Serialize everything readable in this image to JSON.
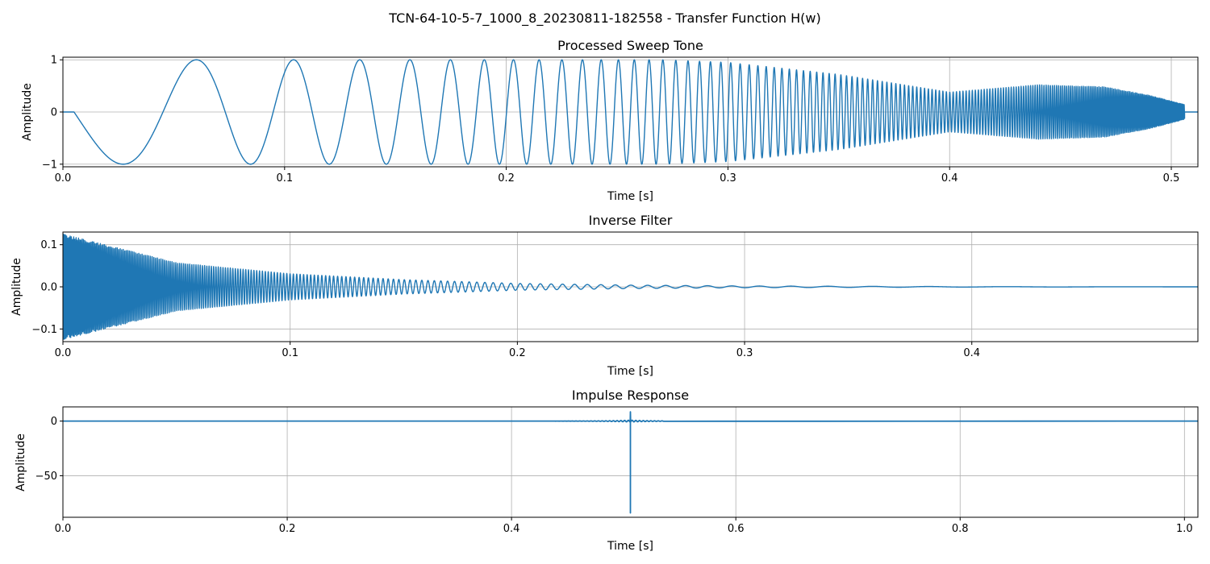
{
  "figure": {
    "title": "TCN-64-10-5-7_1000_8_20230811-182558 - Transfer Function H(w)"
  },
  "chart_data": [
    {
      "type": "line",
      "id": "sweep",
      "title": "Processed Sweep Tone",
      "xlabel": "Time [s]",
      "ylabel": "Amplitude",
      "xlim": [
        0.0,
        0.512
      ],
      "ylim": [
        -1.05,
        1.05
      ],
      "xticks": [
        0.0,
        0.1,
        0.2,
        0.3,
        0.4,
        0.5
      ],
      "xtick_labels": [
        "0.0",
        "0.1",
        "0.2",
        "0.3",
        "0.4",
        "0.5"
      ],
      "yticks": [
        1,
        0,
        -1
      ],
      "ytick_labels": [
        "1",
        "0",
        "−1"
      ],
      "grid": true,
      "color": "#1f77b4",
      "description_points": {
        "silence_end": 0.005,
        "sweep_start": 0.005,
        "sweep_end": 0.506,
        "envelope": [
          [
            0.0,
            0.0
          ],
          [
            0.005,
            1.0
          ],
          [
            0.27,
            1.0
          ],
          [
            0.3,
            0.95
          ],
          [
            0.35,
            0.72
          ],
          [
            0.4,
            0.38
          ],
          [
            0.44,
            0.52
          ],
          [
            0.47,
            0.48
          ],
          [
            0.49,
            0.32
          ],
          [
            0.506,
            0.14
          ],
          [
            0.512,
            0.0
          ]
        ]
      }
    },
    {
      "type": "line",
      "id": "inverse",
      "title": "Inverse Filter",
      "xlabel": "Time [s]",
      "ylabel": "Amplitude",
      "xlim": [
        0.0,
        0.4995
      ],
      "ylim": [
        -0.13,
        0.13
      ],
      "xticks": [
        0.0,
        0.1,
        0.2,
        0.3,
        0.4
      ],
      "xtick_labels": [
        "0.0",
        "0.1",
        "0.2",
        "0.3",
        "0.4"
      ],
      "yticks": [
        0.1,
        0.0,
        -0.1
      ],
      "ytick_labels": [
        "0.1",
        "0.0",
        "−0.1"
      ],
      "grid": true,
      "color": "#1f77b4",
      "description_points": {
        "envelope": [
          [
            0.0,
            0.125
          ],
          [
            0.05,
            0.057
          ],
          [
            0.1,
            0.031
          ],
          [
            0.15,
            0.017
          ],
          [
            0.2,
            0.008
          ],
          [
            0.25,
            0.004
          ],
          [
            0.3,
            0.002
          ],
          [
            0.4,
            0.0005
          ],
          [
            0.4995,
            0.0
          ]
        ]
      }
    },
    {
      "type": "line",
      "id": "impulse",
      "title": "Impulse Response",
      "xlabel": "Time [s]",
      "ylabel": "Amplitude",
      "xlim": [
        0.0,
        1.012
      ],
      "ylim": [
        -88,
        13
      ],
      "xticks": [
        0.0,
        0.2,
        0.4,
        0.6,
        0.8,
        1.0
      ],
      "xtick_labels": [
        "0.0",
        "0.2",
        "0.4",
        "0.6",
        "0.8",
        "1.0"
      ],
      "yticks": [
        0,
        -50
      ],
      "ytick_labels": [
        "0",
        "−50"
      ],
      "grid": true,
      "color": "#1f77b4",
      "description_points": {
        "baseline": 0.0,
        "peak_time": 0.506,
        "peak_max": 8.5,
        "peak_min": -84.0
      }
    }
  ]
}
